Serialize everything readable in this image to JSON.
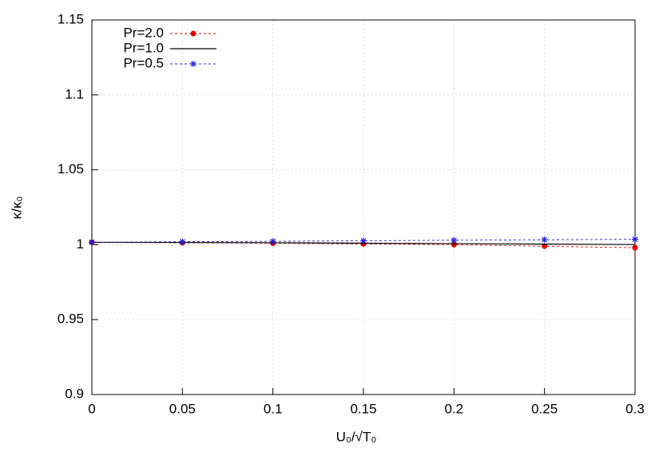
{
  "chart_data": {
    "type": "line",
    "x": [
      0,
      0.05,
      0.1,
      0.15,
      0.2,
      0.25,
      0.3
    ],
    "series": [
      {
        "name": "Pr=2.0",
        "color": "#e00000",
        "marker": "circle",
        "dash": true,
        "values": [
          1.0016,
          1.0013,
          1.001,
          1.0005,
          1.0,
          0.999,
          0.998
        ]
      },
      {
        "name": "Pr=1.0",
        "color": "#000000",
        "marker": "none",
        "dash": false,
        "values": [
          1.0016,
          1.0015,
          1.0013,
          1.001,
          1.0007,
          1.0004,
          1.0001
        ]
      },
      {
        "name": "Pr=0.5",
        "color": "#2020e0",
        "marker": "star",
        "dash": true,
        "values": [
          1.0016,
          1.002,
          1.0023,
          1.0026,
          1.003,
          1.0033,
          1.0036
        ]
      }
    ],
    "xlabel": "U₀/√T₀",
    "ylabel": "κ/κ₀",
    "xlim": [
      0,
      0.3
    ],
    "ylim": [
      0.9,
      1.15
    ],
    "xticks": [
      0,
      0.05,
      0.1,
      0.15,
      0.2,
      0.25,
      0.3
    ],
    "yticks": [
      0.9,
      0.95,
      1,
      1.05,
      1.1,
      1.15
    ],
    "grid": true,
    "legend": "top-left"
  }
}
